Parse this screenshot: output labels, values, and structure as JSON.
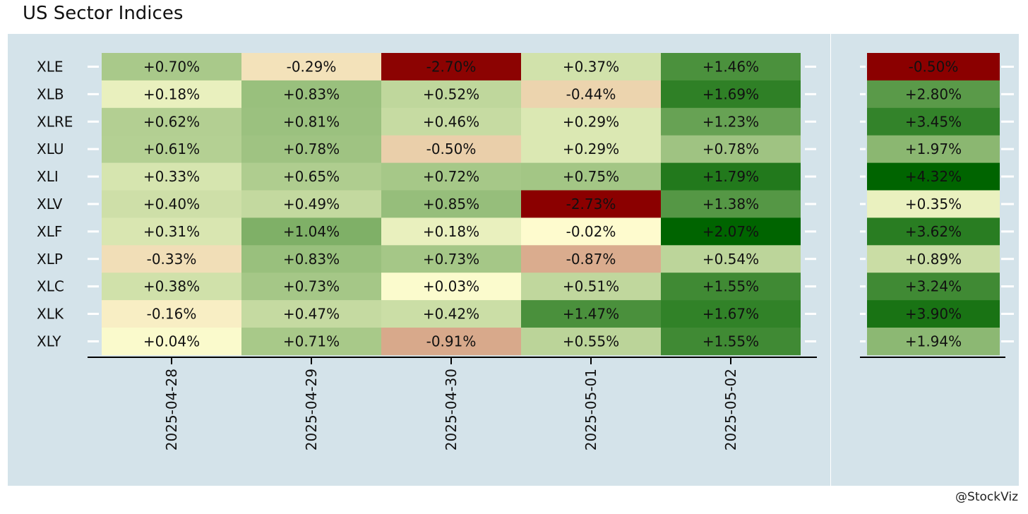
{
  "title": "US Sector Indices",
  "credit": "@StockViz",
  "chart_data": {
    "type": "heatmap",
    "title": "US Sector Indices",
    "rows": [
      "XLE",
      "XLB",
      "XLRE",
      "XLU",
      "XLI",
      "XLV",
      "XLF",
      "XLP",
      "XLC",
      "XLK",
      "XLY"
    ],
    "columns": [
      "2025-04-28",
      "2025-04-29",
      "2025-04-30",
      "2025-05-01",
      "2025-05-02"
    ],
    "values": [
      [
        0.7,
        -0.29,
        -2.7,
        0.37,
        1.46
      ],
      [
        0.18,
        0.83,
        0.52,
        -0.44,
        1.69
      ],
      [
        0.62,
        0.81,
        0.46,
        0.29,
        1.23
      ],
      [
        0.61,
        0.78,
        -0.5,
        0.29,
        0.78
      ],
      [
        0.33,
        0.65,
        0.72,
        0.75,
        1.79
      ],
      [
        0.4,
        0.49,
        0.85,
        -2.73,
        1.38
      ],
      [
        0.31,
        1.04,
        0.18,
        -0.02,
        2.07
      ],
      [
        -0.33,
        0.83,
        0.73,
        -0.87,
        0.54
      ],
      [
        0.38,
        0.73,
        0.03,
        0.51,
        1.55
      ],
      [
        -0.16,
        0.47,
        0.42,
        1.47,
        1.67
      ],
      [
        0.04,
        0.71,
        -0.91,
        0.55,
        1.55
      ]
    ],
    "labels": [
      [
        "+0.70%",
        "-0.29%",
        "-2.70%",
        "+0.37%",
        "+1.46%"
      ],
      [
        "+0.18%",
        "+0.83%",
        "+0.52%",
        "-0.44%",
        "+1.69%"
      ],
      [
        "+0.62%",
        "+0.81%",
        "+0.46%",
        "+0.29%",
        "+1.23%"
      ],
      [
        "+0.61%",
        "+0.78%",
        "-0.50%",
        "+0.29%",
        "+0.78%"
      ],
      [
        "+0.33%",
        "+0.65%",
        "+0.72%",
        "+0.75%",
        "+1.79%"
      ],
      [
        "+0.40%",
        "+0.49%",
        "+0.85%",
        "-2.73%",
        "+1.38%"
      ],
      [
        "+0.31%",
        "+1.04%",
        "+0.18%",
        "-0.02%",
        "+2.07%"
      ],
      [
        "-0.33%",
        "+0.83%",
        "+0.73%",
        "-0.87%",
        "+0.54%"
      ],
      [
        "+0.38%",
        "+0.73%",
        "+0.03%",
        "+0.51%",
        "+1.55%"
      ],
      [
        "-0.16%",
        "+0.47%",
        "+0.42%",
        "+1.47%",
        "+1.67%"
      ],
      [
        "+0.04%",
        "+0.71%",
        "-0.91%",
        "+0.55%",
        "+1.55%"
      ]
    ],
    "summary_values": [
      -0.5,
      2.8,
      3.45,
      1.97,
      4.32,
      0.35,
      3.62,
      0.89,
      3.24,
      3.9,
      1.94
    ],
    "summary_labels": [
      "-0.50%",
      "+2.80%",
      "+3.45%",
      "+1.97%",
      "+4.32%",
      "+0.35%",
      "+3.62%",
      "+0.89%",
      "+3.24%",
      "+3.90%",
      "+1.94%"
    ],
    "color_scale": {
      "low": "#8b0000",
      "mid": "#fffdd0",
      "high": "#006400"
    },
    "panel_background": "#d4e3ea",
    "grid": false
  }
}
